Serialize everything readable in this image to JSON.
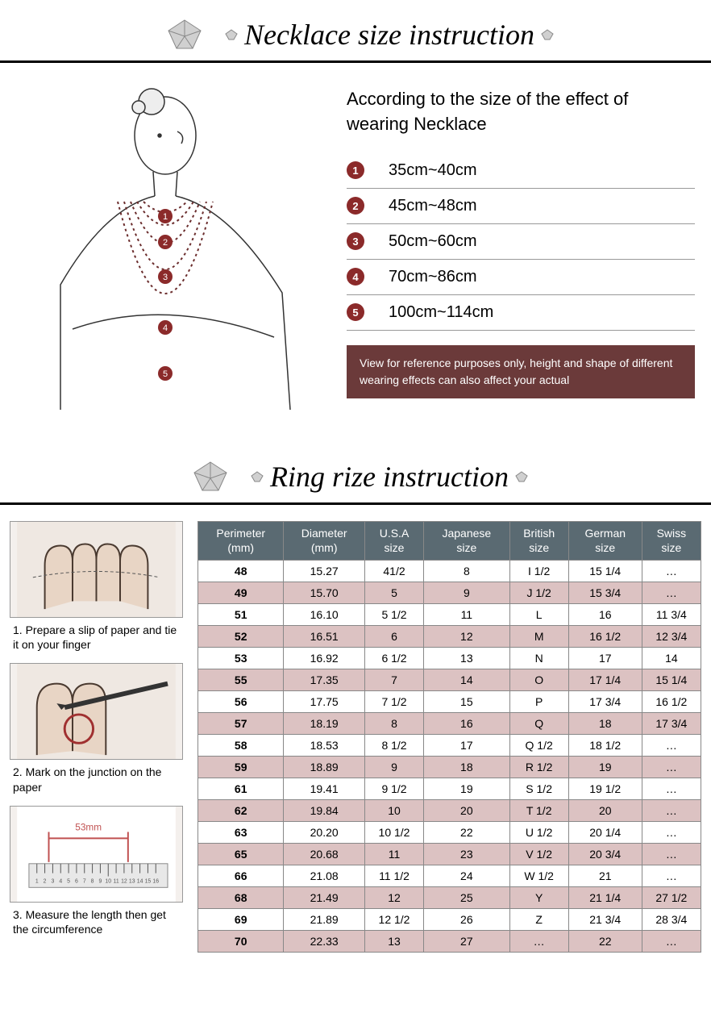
{
  "necklace": {
    "title": "Necklace size instruction",
    "intro": "According to the size of the effect of wearing Necklace",
    "rows": [
      {
        "n": "1",
        "range": "35cm~40cm"
      },
      {
        "n": "2",
        "range": "45cm~48cm"
      },
      {
        "n": "3",
        "range": "50cm~60cm"
      },
      {
        "n": "4",
        "range": "70cm~86cm"
      },
      {
        "n": "5",
        "range": "100cm~114cm"
      }
    ],
    "note": "View for reference purposes only, height and shape of different wearing effects can also affect your actual",
    "badge_bg": "#8b2a2a",
    "note_bg": "#6b3a3a"
  },
  "ring": {
    "title": "Ring rize instruction",
    "steps": [
      {
        "caption": "1. Prepare a slip of paper and tie it on your finger"
      },
      {
        "caption": "2. Mark on the junction on the paper"
      },
      {
        "caption": "3. Measure the length then get the circumference",
        "label": "53mm"
      }
    ],
    "table": {
      "header_bg": "#5a6a72",
      "shade_bg": "#dcc2c2",
      "columns": [
        "Perimeter\n(mm)",
        "Diameter\n(mm)",
        "U.S.A\nsize",
        "Japanese\nsize",
        "British\nsize",
        "German\nsize",
        "Swiss\nsize"
      ],
      "rows": [
        {
          "shade": false,
          "cells": [
            "48",
            "15.27",
            "41/2",
            "8",
            "I 1/2",
            "15 1/4",
            "…"
          ]
        },
        {
          "shade": true,
          "cells": [
            "49",
            "15.70",
            "5",
            "9",
            "J 1/2",
            "15 3/4",
            "…"
          ]
        },
        {
          "shade": false,
          "cells": [
            "51",
            "16.10",
            "5 1/2",
            "11",
            "L",
            "16",
            "11 3/4"
          ]
        },
        {
          "shade": true,
          "cells": [
            "52",
            "16.51",
            "6",
            "12",
            "M",
            "16 1/2",
            "12 3/4"
          ]
        },
        {
          "shade": false,
          "cells": [
            "53",
            "16.92",
            "6 1/2",
            "13",
            "N",
            "17",
            "14"
          ]
        },
        {
          "shade": true,
          "cells": [
            "55",
            "17.35",
            "7",
            "14",
            "O",
            "17 1/4",
            "15 1/4"
          ]
        },
        {
          "shade": false,
          "cells": [
            "56",
            "17.75",
            "7 1/2",
            "15",
            "P",
            "17 3/4",
            "16 1/2"
          ]
        },
        {
          "shade": true,
          "cells": [
            "57",
            "18.19",
            "8",
            "16",
            "Q",
            "18",
            "17 3/4"
          ]
        },
        {
          "shade": false,
          "cells": [
            "58",
            "18.53",
            "8 1/2",
            "17",
            "Q 1/2",
            "18 1/2",
            "…"
          ]
        },
        {
          "shade": true,
          "cells": [
            "59",
            "18.89",
            "9",
            "18",
            "R 1/2",
            "19",
            "…"
          ]
        },
        {
          "shade": false,
          "cells": [
            "61",
            "19.41",
            "9 1/2",
            "19",
            "S 1/2",
            "19 1/2",
            "…"
          ]
        },
        {
          "shade": true,
          "cells": [
            "62",
            "19.84",
            "10",
            "20",
            "T 1/2",
            "20",
            "…"
          ]
        },
        {
          "shade": false,
          "cells": [
            "63",
            "20.20",
            "10 1/2",
            "22",
            "U 1/2",
            "20 1/4",
            "…"
          ]
        },
        {
          "shade": true,
          "cells": [
            "65",
            "20.68",
            "11",
            "23",
            "V 1/2",
            "20 3/4",
            "…"
          ]
        },
        {
          "shade": false,
          "cells": [
            "66",
            "21.08",
            "11 1/2",
            "24",
            "W 1/2",
            "21",
            "…"
          ]
        },
        {
          "shade": true,
          "cells": [
            "68",
            "21.49",
            "12",
            "25",
            "Y",
            "21 1/4",
            "27 1/2"
          ]
        },
        {
          "shade": false,
          "cells": [
            "69",
            "21.89",
            "12 1/2",
            "26",
            "Z",
            "21 3/4",
            "28 3/4"
          ]
        },
        {
          "shade": true,
          "cells": [
            "70",
            "22.33",
            "13",
            "27",
            "…",
            "22",
            "…"
          ]
        }
      ]
    }
  }
}
